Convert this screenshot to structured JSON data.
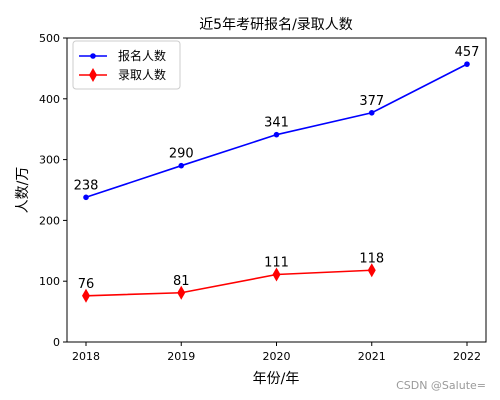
{
  "chart_data": {
    "type": "line",
    "title": "近5年考研报名/录取人数",
    "xlabel": "年份/年",
    "ylabel": "人数/万",
    "ylim": [
      0,
      500
    ],
    "yticks": [
      0,
      100,
      200,
      300,
      400,
      500
    ],
    "x": [
      "2018",
      "2019",
      "2020",
      "2021",
      "2022"
    ],
    "series": [
      {
        "name": "报名人数",
        "color": "#0000ff",
        "marker": "circle",
        "values": [
          238,
          290,
          341,
          377,
          457
        ]
      },
      {
        "name": "录取人数",
        "color": "#ff0000",
        "marker": "diamond",
        "values": [
          76,
          81,
          111,
          118,
          null
        ]
      }
    ],
    "legend_position": "upper-left",
    "grid": false
  },
  "watermark": "CSDN @Salute="
}
